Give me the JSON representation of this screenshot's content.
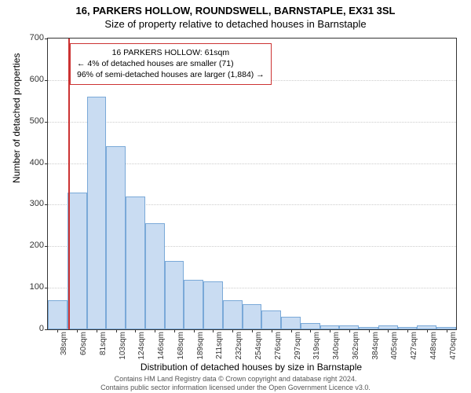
{
  "title_line1": "16, PARKERS HOLLOW, ROUNDSWELL, BARNSTAPLE, EX31 3SL",
  "title_line2": "Size of property relative to detached houses in Barnstaple",
  "ylabel": "Number of detached properties",
  "xlabel": "Distribution of detached houses by size in Barnstaple",
  "chart": {
    "type": "histogram",
    "background_color": "#ffffff",
    "plot_border_color": "#333333",
    "grid_color": "#cccccc",
    "bar_fill": "#c9dcf2",
    "bar_edge": "#7aa9d8",
    "marker_color": "#cc3333",
    "ylim": [
      0,
      700
    ],
    "yticks": [
      0,
      100,
      200,
      300,
      400,
      500,
      600,
      700
    ],
    "x_categories": [
      "38sqm",
      "60sqm",
      "81sqm",
      "103sqm",
      "124sqm",
      "146sqm",
      "168sqm",
      "189sqm",
      "211sqm",
      "232sqm",
      "254sqm",
      "276sqm",
      "297sqm",
      "319sqm",
      "340sqm",
      "362sqm",
      "384sqm",
      "405sqm",
      "427sqm",
      "448sqm",
      "470sqm"
    ],
    "values": [
      70,
      330,
      560,
      440,
      320,
      255,
      165,
      120,
      115,
      70,
      60,
      45,
      30,
      15,
      10,
      10,
      5,
      10,
      5,
      10,
      5
    ],
    "bar_width_rel": 1.0,
    "marker_value_sqm": 61,
    "marker_x_index": 1.05,
    "title_fontsize": 13,
    "label_fontsize": 12,
    "tick_fontsize": 11
  },
  "annotation": {
    "line1": "16 PARKERS HOLLOW: 61sqm",
    "line2": "← 4% of detached houses are smaller (71)",
    "line3": "96% of semi-detached houses are larger (1,884) →",
    "border_color": "#cc3333",
    "background": "#ffffff",
    "fontsize": 10.5
  },
  "footer": {
    "line1": "Contains HM Land Registry data © Crown copyright and database right 2024.",
    "line2": "Contains public sector information licensed under the Open Government Licence v3.0.",
    "color": "#555555",
    "fontsize": 9
  }
}
